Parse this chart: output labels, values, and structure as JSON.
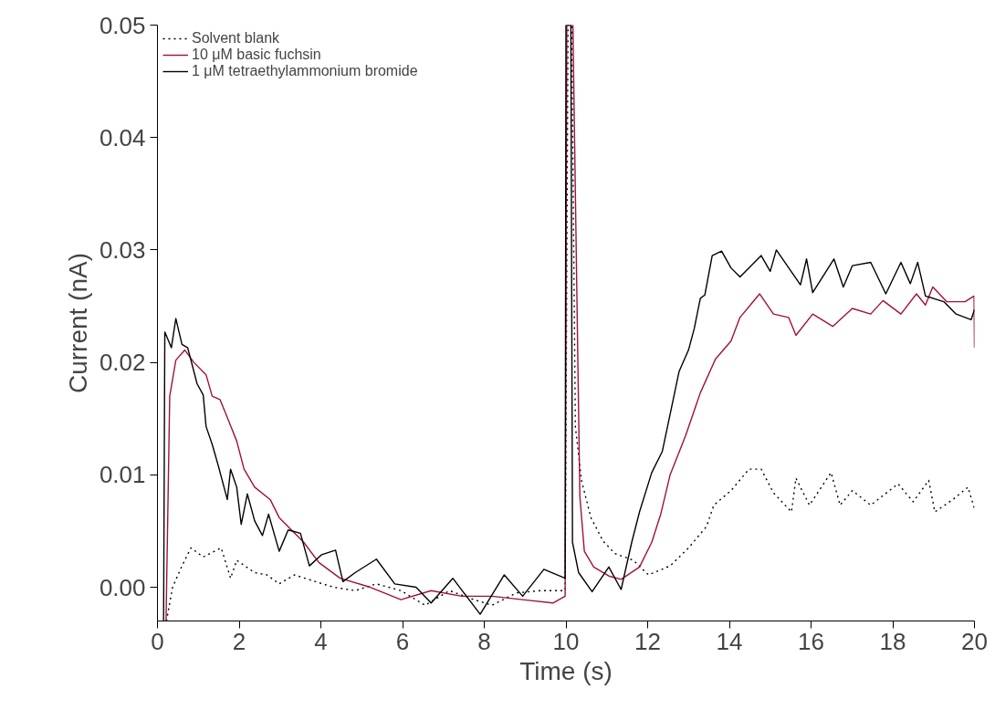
{
  "chart_data": {
    "type": "line",
    "xlabel": "Time (s)",
    "ylabel": "Current (nA)",
    "xlim": [
      0,
      20
    ],
    "ylim": [
      -0.003,
      0.05
    ],
    "xticks": [
      0,
      2,
      4,
      6,
      8,
      10,
      12,
      14,
      16,
      18,
      20
    ],
    "yticks": [
      {
        "value": 0,
        "label": "0.00"
      },
      {
        "value": 0.01,
        "label": "0.01"
      },
      {
        "value": 0.02,
        "label": "0.02"
      },
      {
        "value": 0.03,
        "label": "0.03"
      },
      {
        "value": 0.04,
        "label": "0.04"
      },
      {
        "value": 0.05,
        "label": "0.05"
      }
    ],
    "grid": false,
    "legend": "top left",
    "marker": "none",
    "series": [
      {
        "name": "Solvent blank",
        "color": "#000000",
        "line_style": "dotted",
        "x": [
          0.22,
          0.37,
          0.6,
          0.82,
          1.12,
          1.56,
          1.79,
          1.94,
          2.38,
          2.68,
          2.98,
          3.35,
          3.87,
          4.32,
          4.84,
          5.36,
          5.96,
          6.55,
          7.15,
          7.75,
          8.19,
          8.79,
          9.39,
          9.98,
          10.05,
          10.14,
          10.23,
          10.38,
          10.61,
          10.91,
          11.2,
          11.65,
          12.02,
          12.55,
          13.0,
          13.44,
          13.62,
          14.04,
          14.48,
          14.78,
          15.08,
          15.52,
          15.63,
          15.96,
          16.49,
          16.71,
          17.01,
          17.46,
          18.13,
          18.5,
          18.88,
          19.03,
          19.47,
          19.84,
          20.0
        ],
        "values": [
          -0.003,
          0.0,
          0.0019,
          0.0035,
          0.0027,
          0.0035,
          0.0008,
          0.0024,
          0.0013,
          0.0011,
          0.0003,
          0.0011,
          0.0005,
          0.0,
          -0.0003,
          0.0003,
          -0.0003,
          -0.0016,
          -0.0003,
          -0.0011,
          -0.0016,
          -0.0005,
          -0.0003,
          -0.0003,
          0.05,
          0.05,
          0.0143,
          0.0095,
          0.0062,
          0.0041,
          0.003,
          0.0024,
          0.0011,
          0.0019,
          0.0035,
          0.0054,
          0.0073,
          0.0086,
          0.0105,
          0.0105,
          0.0084,
          0.0067,
          0.0097,
          0.0073,
          0.0102,
          0.0073,
          0.0086,
          0.0073,
          0.0092,
          0.0076,
          0.0095,
          0.0067,
          0.0078,
          0.0089,
          0.007
        ]
      },
      {
        "name": "10 μM basic fuchsin",
        "color": "#a01040",
        "line_style": "solid",
        "x": [
          0.21,
          0.3,
          0.45,
          0.67,
          0.89,
          1.19,
          1.34,
          1.53,
          1.71,
          1.94,
          2.12,
          2.38,
          2.76,
          2.98,
          3.28,
          3.58,
          3.95,
          4.47,
          5.21,
          5.96,
          6.7,
          7.45,
          8.19,
          8.94,
          9.68,
          9.98,
          10.02,
          10.17,
          10.34,
          10.45,
          10.68,
          11.05,
          11.35,
          11.8,
          12.1,
          12.32,
          12.55,
          12.93,
          13.29,
          13.66,
          14.04,
          14.26,
          14.56,
          14.74,
          14.93,
          15.08,
          15.45,
          15.63,
          16.04,
          16.53,
          17.01,
          17.46,
          17.76,
          18.2,
          18.58,
          18.8,
          18.98,
          19.32,
          19.77,
          19.99,
          20.0
        ],
        "values": [
          -0.003,
          0.017,
          0.0202,
          0.0211,
          0.02,
          0.0189,
          0.017,
          0.0167,
          0.0151,
          0.013,
          0.0105,
          0.0089,
          0.0078,
          0.0062,
          0.0051,
          0.004,
          0.0022,
          0.0008,
          0.0,
          -0.0011,
          -0.0003,
          -0.0008,
          -0.0008,
          -0.0011,
          -0.0014,
          -0.0008,
          0.05,
          0.05,
          0.0081,
          0.0032,
          0.0018,
          0.001,
          0.0007,
          0.0018,
          0.004,
          0.0065,
          0.01,
          0.0135,
          0.0173,
          0.0203,
          0.0219,
          0.024,
          0.0253,
          0.0261,
          0.0251,
          0.0243,
          0.024,
          0.0224,
          0.0243,
          0.0232,
          0.0248,
          0.0243,
          0.0255,
          0.0243,
          0.0261,
          0.0251,
          0.0267,
          0.0254,
          0.0254,
          0.0259,
          0.0213
        ]
      },
      {
        "name": "1 μM tetraethylammonium bromide",
        "color": "#000000",
        "line_style": "solid",
        "x": [
          0.15,
          0.18,
          0.34,
          0.45,
          0.6,
          0.74,
          0.97,
          1.12,
          1.19,
          1.34,
          1.49,
          1.71,
          1.79,
          1.94,
          2.05,
          2.2,
          2.38,
          2.57,
          2.72,
          2.98,
          3.2,
          3.5,
          3.72,
          4.02,
          4.36,
          4.54,
          4.84,
          5.36,
          5.81,
          6.33,
          6.7,
          7.23,
          7.9,
          8.49,
          8.94,
          9.46,
          9.98,
          10.0,
          10.12,
          10.16,
          10.31,
          10.64,
          11.05,
          11.35,
          11.61,
          11.8,
          12.1,
          12.36,
          12.55,
          12.77,
          13.0,
          13.14,
          13.29,
          13.4,
          13.58,
          13.81,
          14.04,
          14.26,
          14.78,
          15.0,
          15.15,
          15.74,
          15.89,
          16.04,
          16.56,
          16.79,
          17.01,
          17.46,
          17.83,
          18.2,
          18.43,
          18.61,
          18.8,
          19.25,
          19.55,
          19.92,
          20.0
        ],
        "values": [
          -0.003,
          0.0227,
          0.0213,
          0.0239,
          0.0216,
          0.0213,
          0.0181,
          0.0171,
          0.0143,
          0.0127,
          0.0108,
          0.0078,
          0.0105,
          0.0089,
          0.0056,
          0.0083,
          0.0059,
          0.0046,
          0.0065,
          0.0032,
          0.0051,
          0.0048,
          0.0019,
          0.0029,
          0.0033,
          0.0005,
          0.0013,
          0.0025,
          0.0003,
          0.0,
          -0.0014,
          0.0008,
          -0.0024,
          0.0011,
          -0.0008,
          0.0016,
          0.0008,
          0.05,
          0.05,
          0.004,
          0.0013,
          -0.0004,
          0.0018,
          -0.0002,
          0.004,
          0.0067,
          0.0102,
          0.0121,
          0.0154,
          0.0192,
          0.0211,
          0.023,
          0.0257,
          0.026,
          0.0295,
          0.0299,
          0.0284,
          0.0276,
          0.0295,
          0.0281,
          0.03,
          0.0269,
          0.0292,
          0.0262,
          0.0292,
          0.0267,
          0.0286,
          0.0289,
          0.0261,
          0.0289,
          0.027,
          0.0289,
          0.0259,
          0.0254,
          0.0243,
          0.0238,
          0.0247
        ]
      }
    ]
  }
}
